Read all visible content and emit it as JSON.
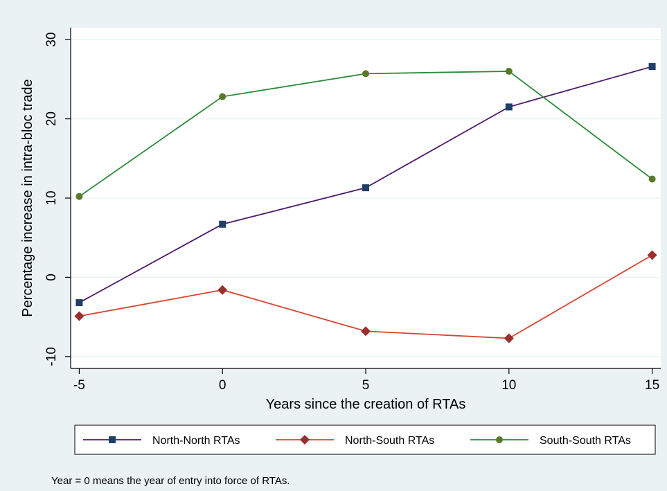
{
  "chart_data": {
    "type": "line",
    "title": "",
    "xlabel": "Years since the creation of RTAs",
    "ylabel": "Percentage increase in intra-bloc trade",
    "x": [
      -5,
      0,
      5,
      10,
      15
    ],
    "x_ticks": [
      "-5",
      "0",
      "5",
      "10",
      "15"
    ],
    "y_ticks": [
      "-10",
      "0",
      "10",
      "20",
      "30"
    ],
    "xlim": [
      -5.3,
      15.3
    ],
    "ylim": [
      -11.5,
      31.5
    ],
    "grid": true,
    "legend_position": "bottom",
    "series": [
      {
        "name": "North-North RTAs",
        "color": "#4b1a6b",
        "marker_color": "#1f3f66",
        "marker": "square",
        "values": [
          -3.2,
          6.7,
          11.3,
          21.5,
          26.6
        ]
      },
      {
        "name": "North-South RTAs",
        "color": "#d9442f",
        "marker_color": "#9b2f2f",
        "marker": "diamond",
        "values": [
          -4.9,
          -1.6,
          -6.8,
          -7.7,
          2.8
        ]
      },
      {
        "name": "South-South RTAs",
        "color": "#2a8a3a",
        "marker_color": "#5a7a2a",
        "marker": "circle",
        "values": [
          10.2,
          22.8,
          25.7,
          26.0,
          12.4
        ]
      }
    ],
    "note": "Year = 0 means the year of entry into force of RTAs."
  }
}
